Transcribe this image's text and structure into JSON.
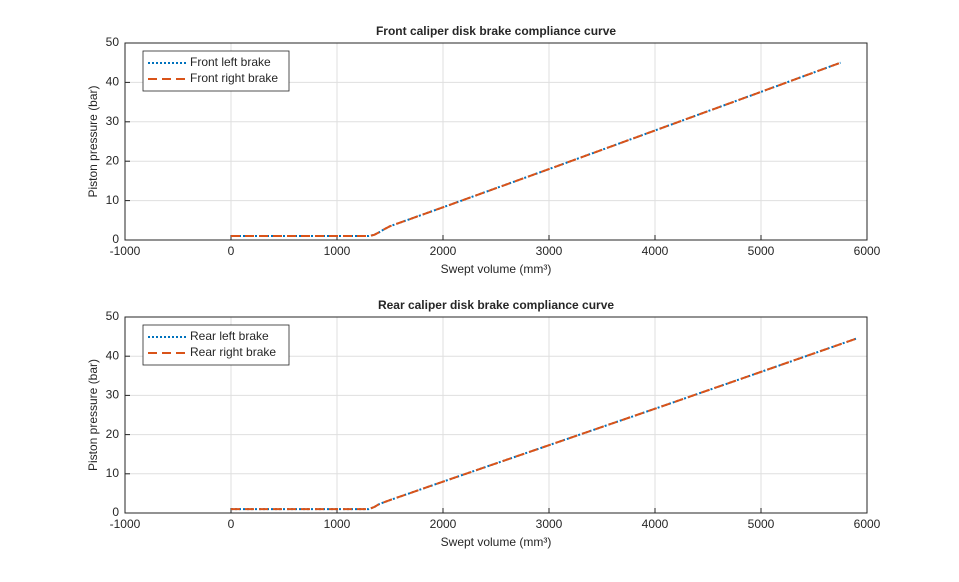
{
  "chart_data": [
    {
      "type": "line",
      "title": "Front caliper disk brake compliance curve",
      "x_label": "Swept  volume  (mm³)",
      "y_label": "Piston pressure (bar)",
      "x": [
        0,
        1300,
        1350,
        1400,
        1450,
        1500,
        2000,
        3000,
        4000,
        5000,
        5750
      ],
      "series": [
        {
          "name": "Front left brake",
          "color": "#0072BD",
          "style": "dotted",
          "values": [
            1,
            1,
            1.3,
            2,
            2.8,
            3.5,
            8.3,
            18,
            27.8,
            37.6,
            45
          ]
        },
        {
          "name": "Front right brake",
          "color": "#D95319",
          "style": "dashed",
          "values": [
            1,
            1,
            1.3,
            2,
            2.8,
            3.5,
            8.3,
            18,
            27.8,
            37.6,
            45
          ]
        }
      ],
      "xlim": [
        -1000,
        6000
      ],
      "xticks": [
        -1000,
        0,
        1000,
        2000,
        3000,
        4000,
        5000,
        6000
      ],
      "ylim": [
        0,
        50
      ],
      "yticks": [
        0,
        10,
        20,
        30,
        40,
        50
      ],
      "grid": true,
      "legend": "northwest"
    },
    {
      "type": "line",
      "title": "Rear caliper disk brake compliance curve",
      "x_label": "Swept  volume  (mm³)",
      "y_label": "Piston pressure (bar)",
      "x": [
        0,
        1300,
        1350,
        1400,
        1500,
        2000,
        3000,
        4000,
        5000,
        5900
      ],
      "series": [
        {
          "name": "Rear left brake",
          "color": "#0072BD",
          "style": "dotted",
          "values": [
            1,
            1,
            1.5,
            2.3,
            3.3,
            8,
            17.3,
            26.6,
            36,
            44.5
          ]
        },
        {
          "name": "Rear right brake",
          "color": "#D95319",
          "style": "dashed",
          "values": [
            1,
            1,
            1.5,
            2.3,
            3.3,
            8,
            17.3,
            26.6,
            36,
            44.5
          ]
        }
      ],
      "xlim": [
        -1000,
        6000
      ],
      "xticks": [
        -1000,
        0,
        1000,
        2000,
        3000,
        4000,
        5000,
        6000
      ],
      "ylim": [
        0,
        50
      ],
      "yticks": [
        0,
        10,
        20,
        30,
        40,
        50
      ],
      "grid": true,
      "legend": "northwest"
    }
  ]
}
